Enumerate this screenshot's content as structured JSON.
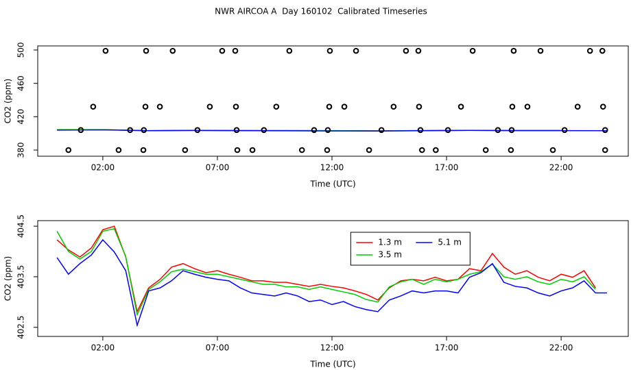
{
  "title": "NWR AIRCOA A  Day 160102  Calibrated Timeseries",
  "chart_data": [
    {
      "type": "line",
      "xlabel": "Time (UTC)",
      "ylabel": "CO2 (ppm)",
      "xlim": [
        -0.84,
        24.93
      ],
      "ylim": [
        372.6,
        504.9
      ],
      "xticks": [
        {
          "value": 2,
          "label": "02:00"
        },
        {
          "value": 7,
          "label": "07:00"
        },
        {
          "value": 12,
          "label": "12:00"
        },
        {
          "value": 17,
          "label": "17:00"
        },
        {
          "value": 22,
          "label": "22:00"
        }
      ],
      "yticks": [
        380,
        420,
        460,
        500
      ],
      "x": [
        0,
        2,
        4,
        6,
        8,
        10,
        12,
        14,
        16,
        18,
        20,
        22,
        24
      ],
      "series": [
        {
          "kind": "line",
          "color": "#ff0000",
          "values": [
            404.23,
            404.43,
            403.28,
            403.62,
            403.42,
            403.39,
            403.31,
            403.15,
            403.42,
            403.62,
            403.55,
            403.55,
            null
          ]
        },
        {
          "kind": "line",
          "color": "#00cc00",
          "values": [
            404.4,
            404.4,
            403.25,
            403.55,
            403.45,
            403.35,
            403.25,
            403.05,
            403.35,
            403.6,
            403.45,
            403.45,
            null
          ]
        },
        {
          "kind": "line",
          "color": "#0000ff",
          "values": [
            403.88,
            404.23,
            403.22,
            403.55,
            403.28,
            403.15,
            402.95,
            402.81,
            403.18,
            403.58,
            403.31,
            403.28,
            403.18
          ]
        },
        {
          "kind": "scatter",
          "color": "#000000",
          "x": [
            2.12,
            3.89,
            5.05,
            7.21,
            7.78,
            10.14,
            11.91,
            13.05,
            15.23,
            15.77,
            18.14,
            19.93,
            21.1,
            23.26,
            23.8,
            1.58,
            3.86,
            4.49,
            6.67,
            7.81,
            9.57,
            11.88,
            12.54,
            14.69,
            15.8,
            17.63,
            19.87,
            20.53,
            22.72,
            23.83,
            1.04,
            3.19,
            3.79,
            6.13,
            7.84,
            9.03,
            11.22,
            11.82,
            14.16,
            15.86,
            17.06,
            19.24,
            19.84,
            22.15,
            23.92,
            0.5,
            2.69,
            3.77,
            5.59,
            7.87,
            8.53,
            10.69,
            11.79,
            13.62,
            15.93,
            16.53,
            18.71,
            19.81,
            21.64,
            23.92
          ],
          "values": [
            499,
            499,
            499,
            499,
            499,
            499,
            499,
            499,
            499,
            499,
            499,
            499,
            499,
            499,
            499,
            432,
            432,
            432,
            432,
            432,
            432,
            432,
            432,
            432,
            432,
            432,
            432,
            432,
            432,
            432,
            404,
            404,
            404,
            404,
            404,
            404,
            404,
            404,
            404,
            404,
            404,
            404,
            404,
            404,
            404,
            380,
            380,
            380,
            380,
            380,
            380,
            380,
            380,
            380,
            380,
            380,
            380,
            380,
            380,
            380
          ]
        }
      ]
    },
    {
      "type": "line",
      "xlabel": "Time (UTC)",
      "ylabel": "CO2 (ppm)",
      "xlim": [
        -0.84,
        24.93
      ],
      "ylim": [
        402.32,
        404.61
      ],
      "xticks": [
        {
          "value": 2,
          "label": "02:00"
        },
        {
          "value": 7,
          "label": "07:00"
        },
        {
          "value": 12,
          "label": "12:00"
        },
        {
          "value": 17,
          "label": "17:00"
        },
        {
          "value": 22,
          "label": "22:00"
        }
      ],
      "yticks": [
        402.5,
        403.5,
        404.5
      ],
      "legend": "top",
      "x": [
        0,
        0.5,
        1,
        1.5,
        2,
        2.5,
        3,
        3.5,
        4,
        4.5,
        5,
        5.5,
        6,
        6.5,
        7,
        7.5,
        8,
        8.5,
        9,
        9.5,
        10,
        10.5,
        11,
        11.5,
        12,
        12.5,
        13,
        13.5,
        14,
        14.5,
        15,
        15.5,
        16,
        16.5,
        17,
        17.5,
        18,
        18.5,
        19,
        19.5,
        20,
        20.5,
        21,
        21.5,
        22,
        22.5,
        23,
        23.5,
        24
      ],
      "series": [
        {
          "name": "1.3 m",
          "kind": "line",
          "color": "#ff0000",
          "values": [
            404.23,
            404.03,
            403.89,
            404.07,
            404.43,
            404.5,
            403.89,
            402.81,
            403.28,
            403.45,
            403.69,
            403.76,
            403.66,
            403.58,
            403.62,
            403.55,
            403.49,
            403.42,
            403.42,
            403.39,
            403.39,
            403.35,
            403.31,
            403.35,
            403.31,
            403.28,
            403.22,
            403.15,
            403.04,
            403.28,
            403.42,
            403.45,
            403.42,
            403.49,
            403.42,
            403.45,
            403.66,
            403.62,
            403.96,
            403.69,
            403.55,
            403.62,
            403.49,
            403.42,
            403.55,
            403.49,
            403.62,
            403.28,
            null
          ]
        },
        {
          "name": "3.5 m",
          "kind": "line",
          "color": "#00cc00",
          "values": [
            404.4,
            404.0,
            403.85,
            404.0,
            404.4,
            404.45,
            403.9,
            402.75,
            403.25,
            403.4,
            403.6,
            403.65,
            403.6,
            403.55,
            403.55,
            403.5,
            403.45,
            403.4,
            403.35,
            403.35,
            403.3,
            403.3,
            403.25,
            403.3,
            403.25,
            403.2,
            403.15,
            403.05,
            403.0,
            403.3,
            403.4,
            403.45,
            403.35,
            403.45,
            403.4,
            403.45,
            403.55,
            403.6,
            403.75,
            403.5,
            403.45,
            403.5,
            403.4,
            403.35,
            403.45,
            403.4,
            403.5,
            403.25,
            null
          ]
        },
        {
          "name": "5.1 m",
          "kind": "line",
          "color": "#0000ff",
          "values": [
            403.88,
            403.55,
            403.76,
            403.93,
            404.23,
            403.99,
            403.62,
            402.54,
            403.22,
            403.28,
            403.42,
            403.62,
            403.55,
            403.49,
            403.45,
            403.42,
            403.28,
            403.18,
            403.15,
            403.12,
            403.18,
            403.12,
            403.01,
            403.04,
            402.95,
            403.01,
            402.91,
            402.85,
            402.81,
            403.04,
            403.12,
            403.22,
            403.18,
            403.22,
            403.22,
            403.18,
            403.49,
            403.58,
            403.76,
            403.39,
            403.31,
            403.28,
            403.18,
            403.12,
            403.22,
            403.28,
            403.42,
            403.18,
            403.18
          ]
        }
      ]
    }
  ]
}
